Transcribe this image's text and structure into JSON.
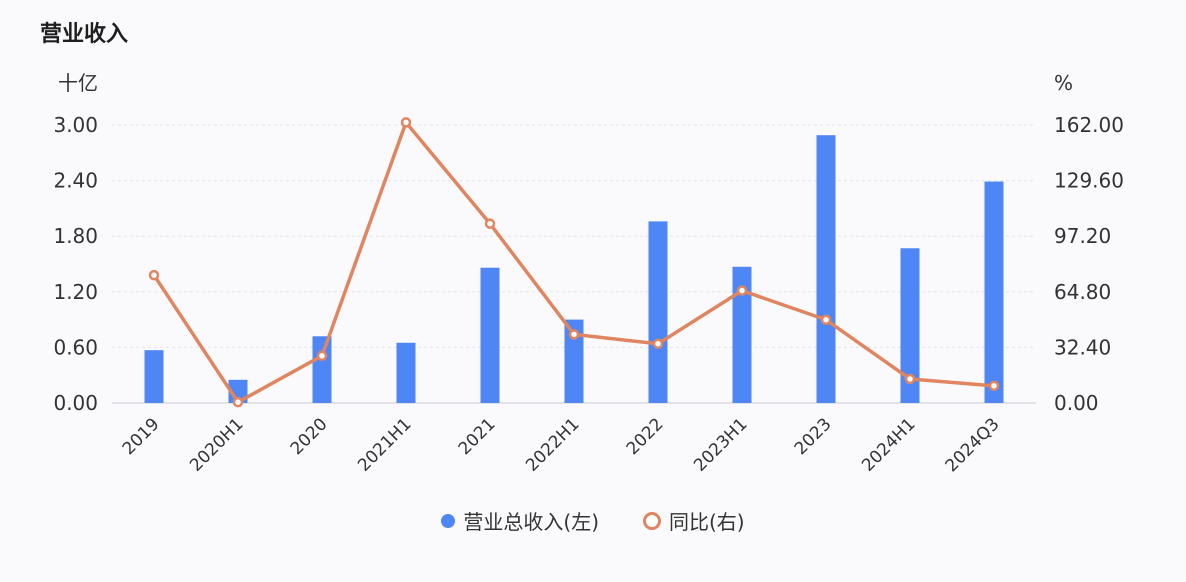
{
  "title": "营业收入",
  "colors": {
    "bar": "#4e87f5",
    "line": "#e0855f",
    "grid": "#e2e4ea"
  },
  "chart_data": {
    "type": "bar",
    "categories": [
      "2019",
      "2020H1",
      "2020",
      "2021H1",
      "2021",
      "2022H1",
      "2022",
      "2023H1",
      "2023",
      "2024H1",
      "2024Q3"
    ],
    "y_left_unit": "十亿",
    "y_right_unit": "%",
    "y_left_ticks": [
      "0.00",
      "0.60",
      "1.20",
      "1.80",
      "2.40",
      "3.00"
    ],
    "y_right_ticks": [
      "0.00",
      "32.40",
      "64.80",
      "97.20",
      "129.60",
      "162.00"
    ],
    "y_left_lim": [
      0,
      3.0
    ],
    "y_right_lim": [
      0,
      162.0
    ],
    "grid": true,
    "legend_position": "bottom",
    "series": [
      {
        "name": "营业总收入(左)",
        "type": "bar",
        "axis": "left",
        "values": [
          0.57,
          0.25,
          0.72,
          0.65,
          1.46,
          0.9,
          1.96,
          1.47,
          2.89,
          1.67,
          2.39
        ]
      },
      {
        "name": "同比(右)",
        "type": "line",
        "axis": "right",
        "values": [
          74.5,
          0.5,
          27.5,
          163.5,
          104.5,
          40.0,
          34.5,
          65.5,
          48.5,
          14.0,
          10.0
        ]
      }
    ]
  }
}
